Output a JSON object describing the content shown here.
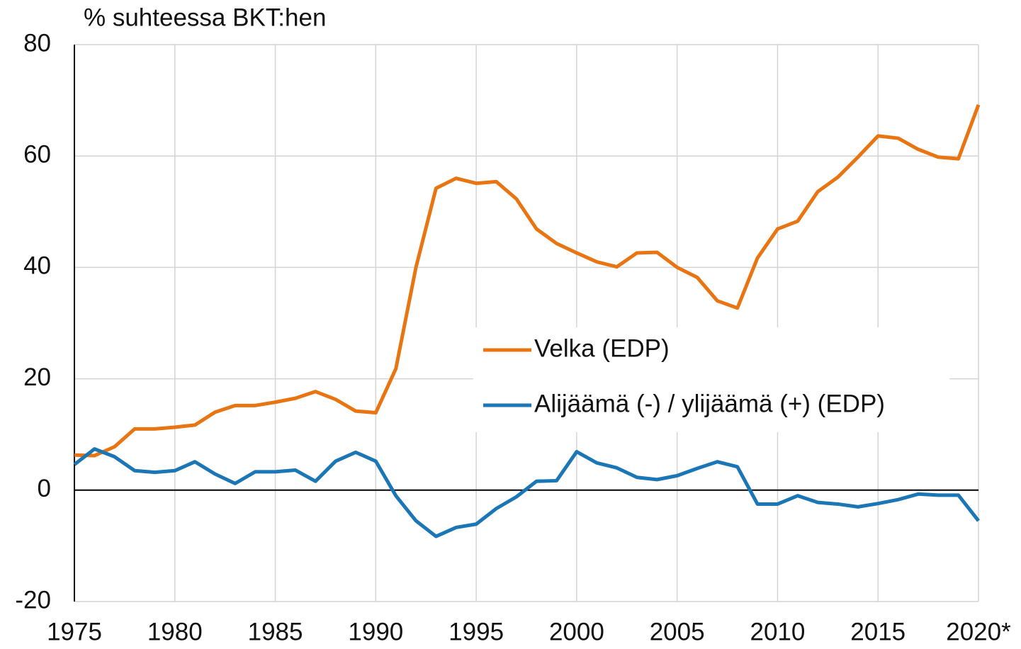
{
  "chart_data": {
    "type": "line",
    "title": "% suhteessa BKT:hen",
    "x": [
      1975,
      1976,
      1977,
      1978,
      1979,
      1980,
      1981,
      1982,
      1983,
      1984,
      1985,
      1986,
      1987,
      1988,
      1989,
      1990,
      1991,
      1992,
      1993,
      1994,
      1995,
      1996,
      1997,
      1998,
      1999,
      2000,
      2001,
      2002,
      2003,
      2004,
      2005,
      2006,
      2007,
      2008,
      2009,
      2010,
      2011,
      2012,
      2013,
      2014,
      2015,
      2016,
      2017,
      2018,
      2019,
      2020
    ],
    "series": [
      {
        "name": "Velka (EDP)",
        "color": "#e87511",
        "values": [
          6.3,
          6.2,
          7.8,
          11.0,
          11.0,
          11.3,
          11.7,
          14.0,
          15.2,
          15.2,
          15.8,
          16.5,
          17.7,
          16.3,
          14.2,
          13.9,
          21.8,
          40.0,
          54.2,
          56.0,
          55.1,
          55.4,
          52.3,
          46.9,
          44.3,
          42.6,
          41.0,
          40.1,
          42.6,
          42.7,
          40.0,
          38.2,
          34.0,
          32.7,
          41.7,
          46.9,
          48.3,
          53.6,
          56.2,
          59.8,
          63.6,
          63.2,
          61.2,
          59.8,
          59.5,
          69.2
        ]
      },
      {
        "name": "Alijäämä (-) / ylijäämä (+) (EDP)",
        "color": "#1a76b5",
        "values": [
          4.6,
          7.4,
          6.0,
          3.5,
          3.2,
          3.5,
          5.1,
          2.9,
          1.2,
          3.3,
          3.3,
          3.6,
          1.6,
          5.2,
          6.8,
          5.2,
          -1.0,
          -5.5,
          -8.3,
          -6.7,
          -6.1,
          -3.3,
          -1.2,
          1.6,
          1.7,
          6.9,
          4.9,
          4.0,
          2.3,
          1.9,
          2.6,
          3.9,
          5.1,
          4.2,
          -2.5,
          -2.5,
          -1.0,
          -2.2,
          -2.5,
          -3.0,
          -2.4,
          -1.7,
          -0.7,
          -0.9,
          -0.9,
          -5.5
        ]
      }
    ],
    "xlim": [
      1975,
      2020
    ],
    "xticks": [
      1975,
      1980,
      1985,
      1990,
      1995,
      2000,
      2005,
      2010,
      2015,
      {
        "value": 2020,
        "label": "2020*"
      }
    ],
    "ylim": [
      -20,
      80
    ],
    "yticks": [
      -20,
      0,
      20,
      40,
      60,
      80
    ],
    "grid": true
  }
}
